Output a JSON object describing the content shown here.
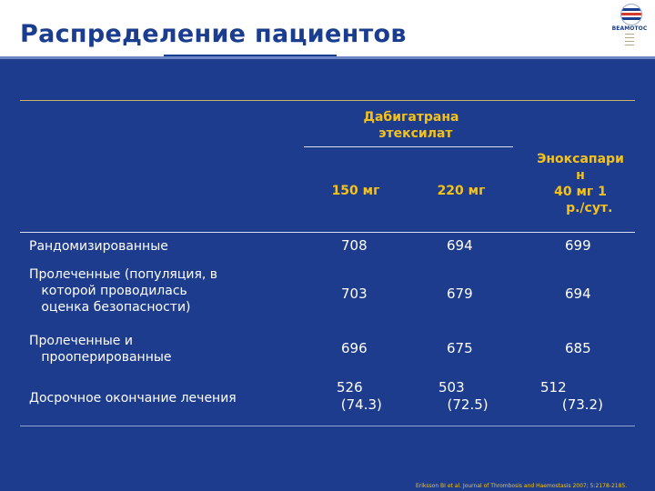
{
  "title": "Распределение пациентов",
  "logo": {
    "brand": "BEAMOTOC"
  },
  "table": {
    "header": {
      "group_label": "Дабигатрана\n  этексилат",
      "sub_150": "150 мг",
      "sub_220": "220 мг",
      "enox": "Эноксапари\nн\n40 мг 1\n    р./сут."
    },
    "rows": [
      {
        "label": "Рандомизированные",
        "v150": "708",
        "v220": "694",
        "enox": "699"
      },
      {
        "label": "Пролеченные (популяция, в\n   которой проводилась\n   оценка безопасности)",
        "v150": "703",
        "v220": "679",
        "enox": "694"
      },
      {
        "label": "Пролеченные и\n   прооперированные",
        "v150": "696",
        "v220": "675",
        "enox": "685"
      },
      {
        "label": "Досрочное окончание лечения",
        "v150": "526\n (74.3)",
        "v220": "503\n  (72.5)",
        "enox": "512\n     (73.2)"
      }
    ]
  },
  "footnote": "Eriksson BI et al. Journal of Thrombosis and Haemostasis 2007; 5:2178-2185.",
  "colors": {
    "background": "#1d3c8e",
    "header_text": "#f4c21a",
    "title": "#1a3d8f",
    "body_text": "#ffffff"
  }
}
